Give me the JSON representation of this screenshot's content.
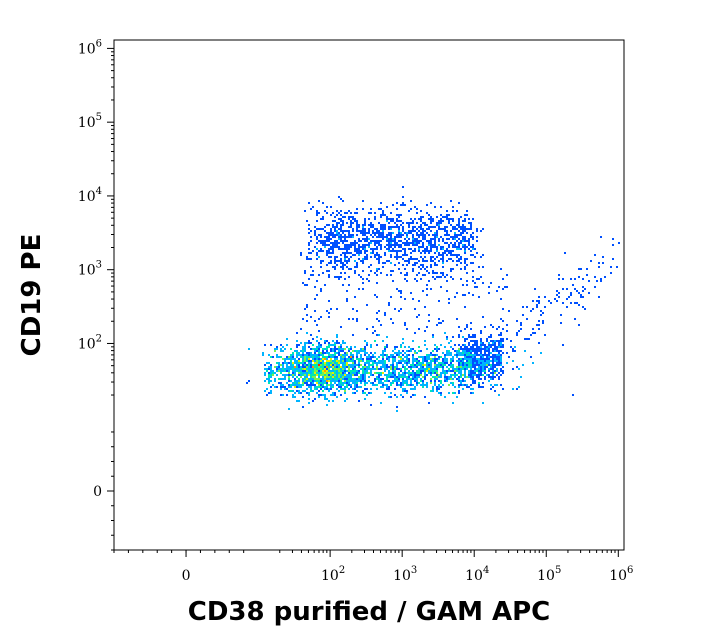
{
  "chart_data": {
    "type": "scatter",
    "style": "flow-cytometry density dot plot (pseudocolor)",
    "xlabel": "CD38 purified / GAM APC",
    "ylabel": "CD19 PE",
    "x_scale": "biexponential (linear near 0, log above)",
    "y_scale": "biexponential (linear near 0, log above)",
    "xlim": [
      -10,
      1200000
    ],
    "ylim": [
      -8,
      1300000
    ],
    "x_ticks": [
      {
        "value": 0,
        "base": "0",
        "exp": ""
      },
      {
        "value": 100,
        "base": "10",
        "exp": "2"
      },
      {
        "value": 1000,
        "base": "10",
        "exp": "3"
      },
      {
        "value": 10000,
        "base": "10",
        "exp": "4"
      },
      {
        "value": 100000,
        "base": "10",
        "exp": "5"
      },
      {
        "value": 1000000,
        "base": "10",
        "exp": "6"
      }
    ],
    "y_ticks": [
      {
        "value": 0,
        "base": "0",
        "exp": ""
      },
      {
        "value": 100,
        "base": "10",
        "exp": "2"
      },
      {
        "value": 1000,
        "base": "10",
        "exp": "3"
      },
      {
        "value": 10000,
        "base": "10",
        "exp": "4"
      },
      {
        "value": 100000,
        "base": "10",
        "exp": "5"
      },
      {
        "value": 1000000,
        "base": "10",
        "exp": "6"
      }
    ],
    "grid": false,
    "legend": "none",
    "colormap": [
      "#0000c8",
      "#0050ff",
      "#00b4ff",
      "#00e6b4",
      "#78f050",
      "#e6f000",
      "#ff9600",
      "#ff1e00"
    ],
    "populations": [
      {
        "x_range": [
          0,
          10000
        ],
        "y_center": 45,
        "peaks_x": [
          80,
          1800
        ],
        "density": "high"
      },
      {
        "x_range": [
          60,
          9000
        ],
        "y_center": 2500,
        "density": "medium"
      },
      {
        "x_range": [
          10000,
          1000000
        ],
        "y_range": [
          80,
          2000
        ],
        "density": "low"
      }
    ]
  }
}
